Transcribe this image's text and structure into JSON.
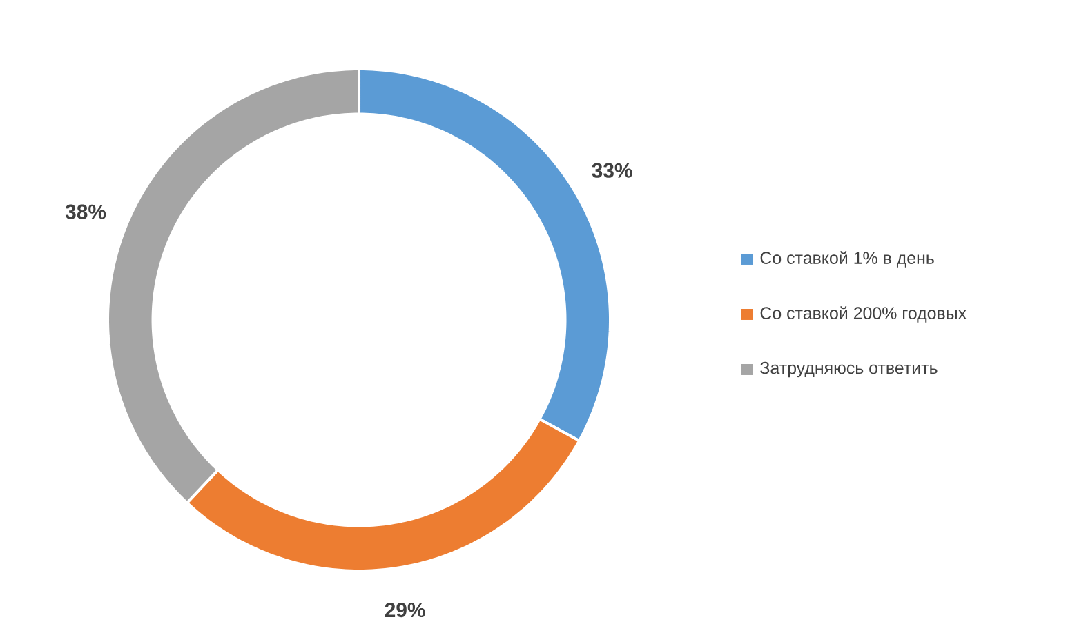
{
  "chart_data": {
    "type": "donut",
    "categories": [
      "Со ставкой 1% в день",
      "Со ставкой 200% годовых",
      "Затрудняюсь ответить"
    ],
    "values": [
      33,
      29,
      38
    ],
    "colors": [
      "#5b9bd5",
      "#ed7d31",
      "#a5a5a5"
    ],
    "value_labels": [
      "33%",
      "29%",
      "38%"
    ],
    "legend": "right"
  }
}
